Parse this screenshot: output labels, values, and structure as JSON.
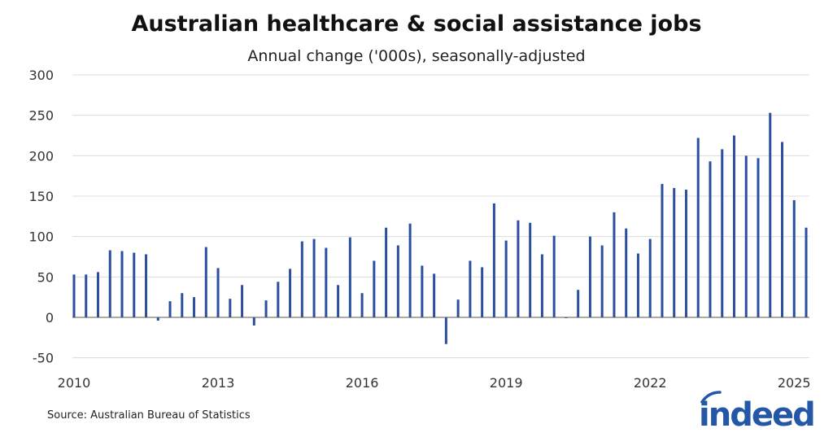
{
  "chart_data": {
    "type": "bar",
    "title": "Australian healthcare & social assistance jobs",
    "subtitle": "Annual change ('000s), seasonally-adjusted",
    "xlabel": "",
    "ylabel": "",
    "ylim": [
      -50,
      300
    ],
    "yticks": [
      "300",
      "250",
      "200",
      "150",
      "100",
      "50",
      "0",
      "-50"
    ],
    "xticks": [
      "2010",
      "2013",
      "2016",
      "2019",
      "2022",
      "2025"
    ],
    "grid": true,
    "bar_color": "#2a4fa0",
    "categories": [
      "2010 Q1",
      "2010 Q2",
      "2010 Q3",
      "2010 Q4",
      "2011 Q1",
      "2011 Q2",
      "2011 Q3",
      "2011 Q4",
      "2012 Q1",
      "2012 Q2",
      "2012 Q3",
      "2012 Q4",
      "2013 Q1",
      "2013 Q2",
      "2013 Q3",
      "2013 Q4",
      "2014 Q1",
      "2014 Q2",
      "2014 Q3",
      "2014 Q4",
      "2015 Q1",
      "2015 Q2",
      "2015 Q3",
      "2015 Q4",
      "2016 Q1",
      "2016 Q2",
      "2016 Q3",
      "2016 Q4",
      "2017 Q1",
      "2017 Q2",
      "2017 Q3",
      "2017 Q4",
      "2018 Q1",
      "2018 Q2",
      "2018 Q3",
      "2018 Q4",
      "2019 Q1",
      "2019 Q2",
      "2019 Q3",
      "2019 Q4",
      "2020 Q1",
      "2020 Q2",
      "2020 Q3",
      "2020 Q4",
      "2021 Q1",
      "2021 Q2",
      "2021 Q3",
      "2021 Q4",
      "2022 Q1",
      "2022 Q2",
      "2022 Q3",
      "2022 Q4",
      "2023 Q1",
      "2023 Q2",
      "2023 Q3",
      "2023 Q4",
      "2024 Q1",
      "2024 Q2",
      "2024 Q3",
      "2024 Q4",
      "2025 Q1",
      "2025 Q2"
    ],
    "values": [
      53,
      53,
      56,
      83,
      82,
      80,
      78,
      -4,
      20,
      30,
      25,
      87,
      61,
      23,
      40,
      -10,
      21,
      44,
      60,
      94,
      97,
      86,
      40,
      99,
      30,
      70,
      111,
      89,
      116,
      64,
      54,
      -33,
      22,
      70,
      62,
      141,
      95,
      120,
      117,
      78,
      101,
      -1,
      34,
      100,
      89,
      130,
      110,
      79,
      97,
      165,
      160,
      158,
      222,
      193,
      208,
      225,
      200,
      197,
      253,
      217,
      145,
      111
    ]
  },
  "source": "Source: Australian Bureau of Statistics",
  "logo": {
    "text": "indeed",
    "color": "#2557a7"
  }
}
